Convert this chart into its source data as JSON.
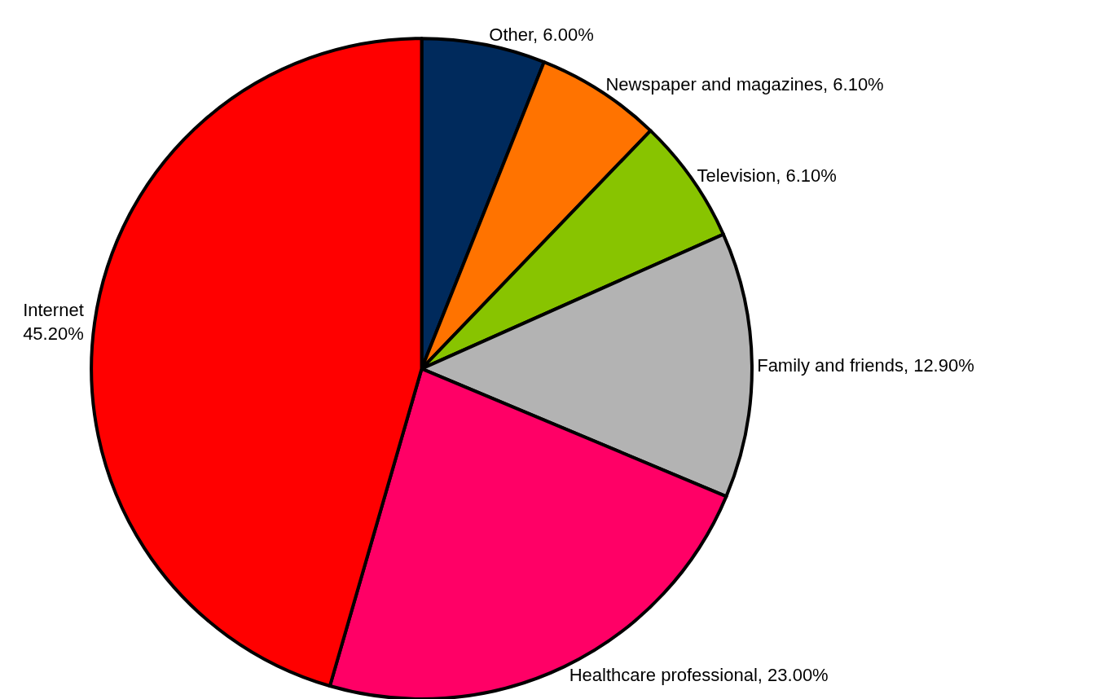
{
  "chart_data": {
    "type": "pie",
    "categories": [
      "Other",
      "Newspaper and magazines",
      "Television",
      "Family and friends",
      "Healthcare professional",
      "Internet"
    ],
    "values": [
      6.0,
      6.1,
      6.1,
      12.9,
      23.0,
      45.2
    ],
    "colors": [
      "#002a5c",
      "#ff7300",
      "#88c400",
      "#b3b3b3",
      "#ff0066",
      "#ff0000"
    ],
    "value_labels": [
      "6.00%",
      "6.10%",
      "6.10%",
      "12.90%",
      "23.00%",
      "45.20%"
    ],
    "legend": false
  }
}
